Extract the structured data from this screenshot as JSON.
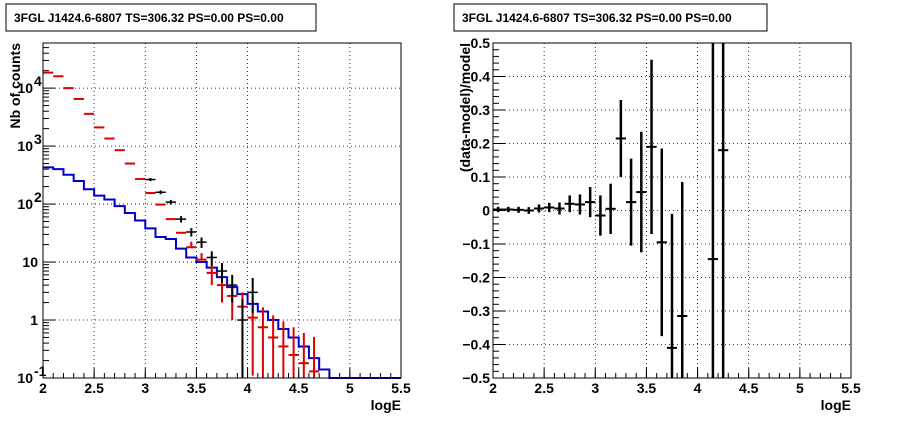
{
  "chart_data": [
    {
      "type": "histogram",
      "title": "3FGL J1424.6-6807 TS=306.32 PS=0.00 PS=0.00",
      "xlabel": "logE",
      "ylabel": "Nb of counts",
      "xlim": [
        2,
        5.5
      ],
      "ylim": [
        0.1,
        60000
      ],
      "yscale": "log",
      "grid": true,
      "x_ticks": [
        "2",
        "2.5",
        "3",
        "3.5",
        "4",
        "4.5",
        "5",
        "5.5"
      ],
      "y_ticks": [
        {
          "label": "10",
          "sup": "-1",
          "value": 0.1
        },
        {
          "label": "1",
          "sup": "",
          "value": 1
        },
        {
          "label": "10",
          "sup": "",
          "value": 10
        },
        {
          "label": "10",
          "sup": "2",
          "value": 100
        },
        {
          "label": "10",
          "sup": "3",
          "value": 1000
        },
        {
          "label": "10",
          "sup": "4",
          "value": 10000
        }
      ],
      "colors": {
        "data": "#000000",
        "total_model": "#dd0000",
        "source_model": "#0000cc"
      },
      "bin_edges": [
        2.0,
        2.1,
        2.2,
        2.3,
        2.4,
        2.5,
        2.6,
        2.7,
        2.8,
        2.9,
        3.0,
        3.1,
        3.2,
        3.3,
        3.4,
        3.5,
        3.6,
        3.7,
        3.8,
        3.9,
        4.0,
        4.1,
        4.2,
        4.3,
        4.4,
        4.5,
        4.6,
        4.7,
        4.8,
        4.9,
        5.0,
        5.1,
        5.2,
        5.3,
        5.4,
        5.5
      ],
      "series": [
        {
          "role": "data",
          "x": [
            3.05,
            3.15,
            3.25,
            3.35,
            3.45,
            3.55,
            3.65,
            3.75,
            3.85,
            3.95,
            4.05
          ],
          "y": [
            265,
            160,
            108,
            55,
            33,
            22,
            12,
            7,
            4,
            1,
            3
          ],
          "yerr_low": [
            16,
            12,
            10,
            7,
            5.5,
            4.5,
            3.3,
            2.6,
            2.0,
            0.9,
            1.7
          ],
          "yerr_high": [
            16,
            12,
            10,
            7,
            5.5,
            4.5,
            3.3,
            2.6,
            2.0,
            1.3,
            2.3
          ]
        },
        {
          "role": "total_model",
          "x": [
            2.05,
            2.15,
            2.25,
            2.35,
            2.45,
            2.55,
            2.65,
            2.75,
            2.85,
            2.95,
            3.05,
            3.15,
            3.25,
            3.35,
            3.45,
            3.55,
            3.65,
            3.75,
            3.85,
            3.95,
            4.05,
            4.15,
            4.25,
            4.35,
            4.45,
            4.55,
            4.65
          ],
          "y": [
            18500,
            16000,
            10000,
            6500,
            3600,
            2100,
            1350,
            850,
            500,
            270,
            155,
            98,
            55,
            32,
            18,
            11,
            6.5,
            4,
            2.6,
            1.7,
            1.1,
            0.75,
            0.5,
            0.35,
            0.25,
            0.18,
            0.13
          ],
          "yerr_low": [
            0,
            0,
            0,
            0,
            0,
            0,
            0,
            0,
            0,
            0,
            0,
            0,
            0,
            0,
            0,
            0,
            2.5,
            2,
            1.6,
            1.3,
            0.99,
            0.65,
            0.4,
            0.25,
            0.15,
            0.08,
            0.03
          ],
          "yerr_high": [
            0,
            0,
            0,
            0,
            0,
            0,
            0,
            0,
            0,
            0,
            0,
            0,
            0,
            0,
            4.5,
            3.3,
            2.5,
            2,
            1.6,
            1.3,
            1.1,
            0.9,
            0.7,
            0.6,
            0.5,
            0.42,
            0.38
          ]
        },
        {
          "role": "source_model",
          "y": [
            430,
            400,
            320,
            250,
            180,
            140,
            120,
            92,
            70,
            52,
            38,
            27,
            25,
            17,
            12,
            10,
            8,
            5.5,
            3.7,
            2.8,
            1.9,
            1.4,
            1.0,
            0.7,
            0.5,
            0.35,
            0.22,
            0.14,
            0.1,
            0.1,
            0.1,
            0.1,
            0.1,
            0.1,
            0.1
          ]
        }
      ]
    },
    {
      "type": "scatter",
      "title": "3FGL J1424.6-6807 TS=306.32 PS=0.00 PS=0.00",
      "xlabel": "logE",
      "ylabel": "(data-model)/model",
      "xlim": [
        2,
        5.5
      ],
      "ylim": [
        -0.5,
        0.5
      ],
      "grid": true,
      "x_ticks": [
        "2",
        "2.5",
        "3",
        "3.5",
        "4",
        "4.5",
        "5",
        "5.5"
      ],
      "y_ticks": [
        "−0.5",
        "−0.4",
        "−0.3",
        "−0.2",
        "−0.1",
        "0",
        "0.1",
        "0.2",
        "0.3",
        "0.4",
        "0.5"
      ],
      "y_tick_values": [
        -0.5,
        -0.4,
        -0.3,
        -0.2,
        -0.1,
        0,
        0.1,
        0.2,
        0.3,
        0.4,
        0.5
      ],
      "series": [
        {
          "x": [
            2.05,
            2.15,
            2.25,
            2.35,
            2.45,
            2.55,
            2.65,
            2.75,
            2.85,
            2.95,
            3.05,
            3.15,
            3.25,
            3.35,
            3.45,
            3.55,
            3.65,
            3.75,
            3.85,
            4.15,
            4.25
          ],
          "y": [
            0.003,
            0.003,
            0.002,
            0.0,
            0.006,
            0.009,
            0.006,
            0.02,
            0.018,
            0.025,
            -0.015,
            0.005,
            0.215,
            0.025,
            0.055,
            0.19,
            -0.095,
            -0.41,
            -0.315,
            -0.145,
            0.18
          ],
          "yerr": [
            0.008,
            0.008,
            0.009,
            0.01,
            0.012,
            0.014,
            0.018,
            0.025,
            0.03,
            0.045,
            0.06,
            0.075,
            0.115,
            0.13,
            0.18,
            0.26,
            0.28,
            0.4,
            0.4,
            0.8,
            0.8
          ]
        }
      ]
    }
  ]
}
